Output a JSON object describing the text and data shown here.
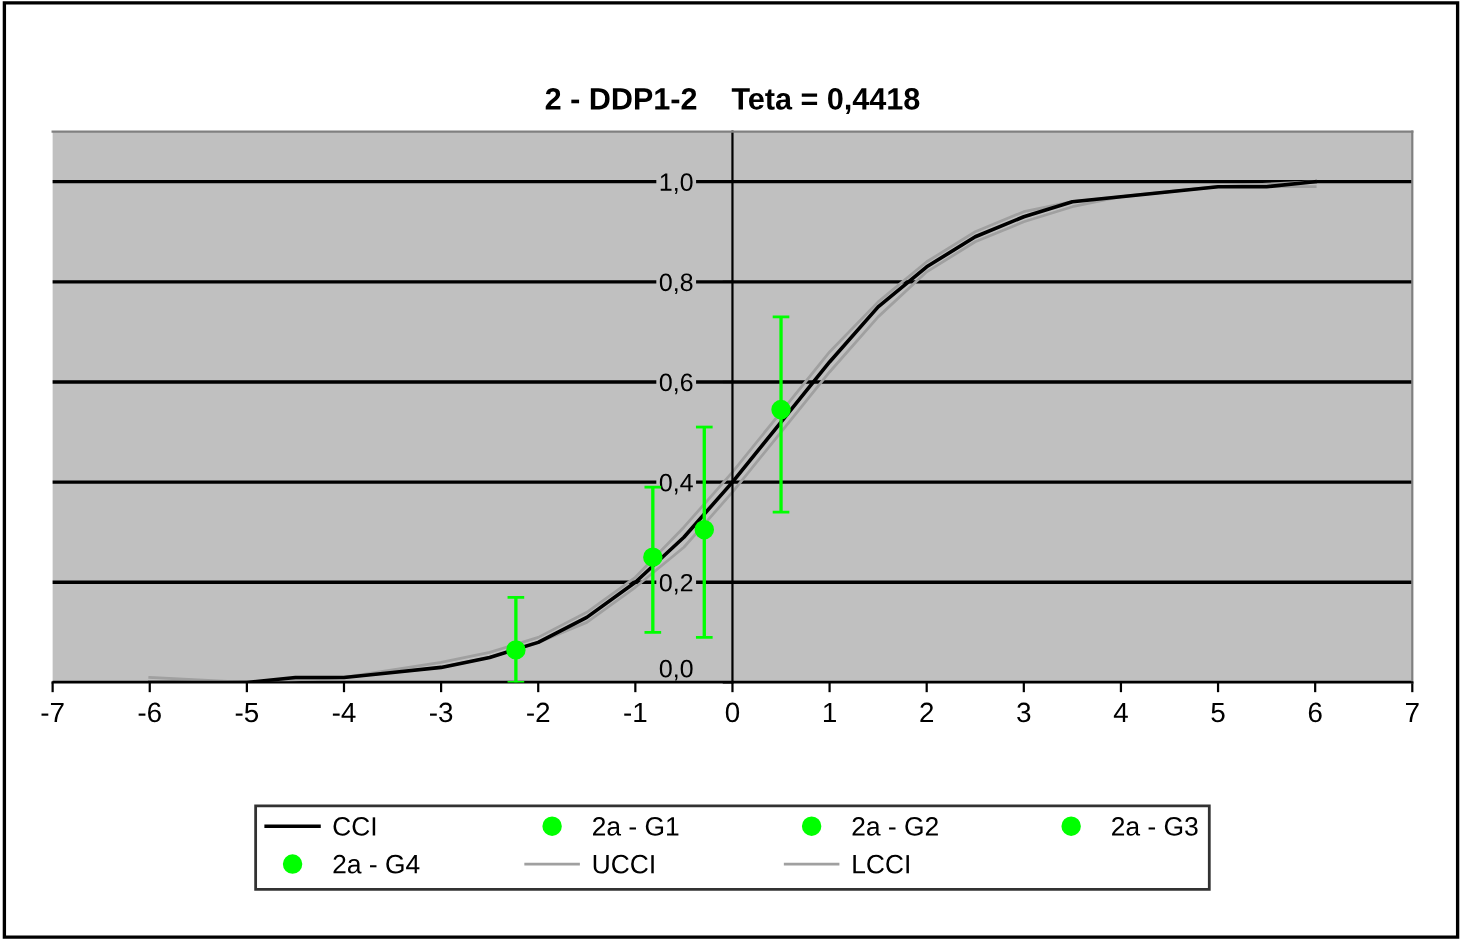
{
  "chart_data": {
    "type": "line",
    "title": "2 - DDP1-2    Teta = 0,4418",
    "xlim": [
      -7,
      7
    ],
    "xticks": [
      -7,
      -6,
      -5,
      -4,
      -3,
      -2,
      -1,
      0,
      1,
      2,
      3,
      4,
      5,
      6,
      7
    ],
    "ylim": [
      0,
      1.1
    ],
    "yticks": [
      {
        "value": 0,
        "label": "0,0"
      },
      {
        "value": 0.2,
        "label": "0,2"
      },
      {
        "value": 0.4,
        "label": "0,4"
      },
      {
        "value": 0.6,
        "label": "0,6"
      },
      {
        "value": 0.8,
        "label": "0,8"
      },
      {
        "value": 1.0,
        "label": "1,0"
      }
    ],
    "grid": "y",
    "legend": "bottom",
    "series": [
      {
        "name": "CCI",
        "color": "#000000",
        "x": [
          -6,
          -5.5,
          -5,
          -4.5,
          -4,
          -3.5,
          -3,
          -2.5,
          -2,
          -1.5,
          -1,
          -0.5,
          0,
          0.5,
          1,
          1.5,
          2,
          2.5,
          3,
          3.5,
          4,
          4.5,
          5,
          5.5,
          6
        ],
        "values": [
          0.0,
          0.0,
          0.0,
          0.01,
          0.01,
          0.02,
          0.03,
          0.05,
          0.08,
          0.13,
          0.2,
          0.29,
          0.4,
          0.52,
          0.64,
          0.75,
          0.83,
          0.89,
          0.93,
          0.96,
          0.97,
          0.98,
          0.99,
          0.99,
          1.0
        ]
      },
      {
        "name": "2a - G1",
        "type": "scatter",
        "color": "#00ff00",
        "x": [
          -2.23
        ],
        "values": [
          0.065
        ],
        "errors": [
          [
            0.0,
            0.17
          ]
        ]
      },
      {
        "name": "2a - G2",
        "type": "scatter",
        "color": "#00ff00",
        "x": [
          -0.82
        ],
        "values": [
          0.25
        ],
        "errors": [
          [
            0.1,
            0.39
          ]
        ]
      },
      {
        "name": "2a - G3",
        "type": "scatter",
        "color": "#00ff00",
        "x": [
          -0.29
        ],
        "values": [
          0.305
        ],
        "errors": [
          [
            0.09,
            0.51
          ]
        ]
      },
      {
        "name": "2a - G4",
        "type": "scatter",
        "color": "#00ff00",
        "x": [
          0.5
        ],
        "values": [
          0.545
        ],
        "errors": [
          [
            0.34,
            0.73
          ]
        ]
      },
      {
        "name": "UCCI",
        "color": "#a0a0a0",
        "x": [
          -6,
          -5,
          -4,
          -3,
          -2.5,
          -2,
          -1.5,
          -1,
          -0.5,
          0,
          0.5,
          1,
          1.5,
          2,
          2.5,
          3,
          3.5,
          4,
          5,
          6
        ],
        "values": [
          0.01,
          0.0,
          0.01,
          0.04,
          0.06,
          0.09,
          0.14,
          0.21,
          0.31,
          0.42,
          0.54,
          0.66,
          0.76,
          0.84,
          0.9,
          0.94,
          0.96,
          0.97,
          0.99,
          1.0
        ]
      },
      {
        "name": "LCCI",
        "color": "#a0a0a0",
        "x": [
          -6,
          -5,
          -4,
          -3,
          -2.5,
          -2,
          -1.5,
          -1,
          -0.5,
          0,
          0.5,
          1,
          1.5,
          2,
          2.5,
          3,
          3.5,
          4,
          5,
          6
        ],
        "values": [
          0.0,
          0.0,
          0.01,
          0.03,
          0.05,
          0.08,
          0.12,
          0.19,
          0.27,
          0.38,
          0.5,
          0.62,
          0.73,
          0.82,
          0.88,
          0.92,
          0.95,
          0.97,
          0.99,
          0.99
        ]
      }
    ]
  }
}
